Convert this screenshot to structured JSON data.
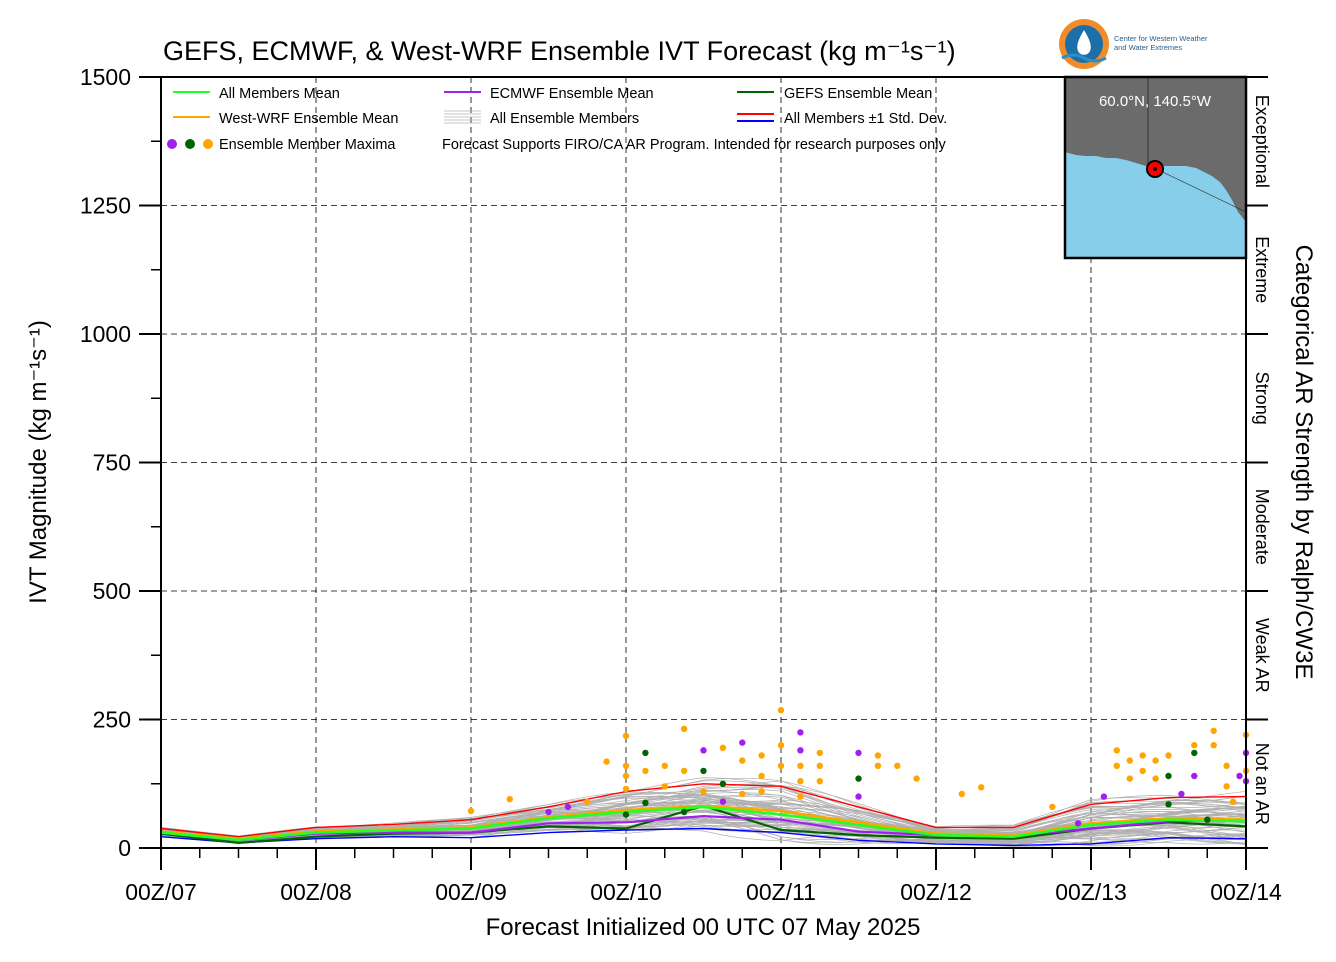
{
  "header": {
    "title": "GEFS, ECMWF, & West-WRF Ensemble IVT Forecast (kg m⁻¹s⁻¹)",
    "logo_text_line1": "Center for Western Weather",
    "logo_text_line2": "and Water Extremes"
  },
  "chart_data": {
    "type": "line",
    "title": "GEFS, ECMWF, & West-WRF Ensemble IVT Forecast (kg m⁻¹s⁻¹)",
    "xlabel": "Forecast Initialized 00 UTC 07 May 2025",
    "ylabel": "IVT Magnitude (kg m⁻¹s⁻¹)",
    "right_label": "Categorical AR Strength by Ralph/CW3E",
    "ylim": [
      0,
      1500
    ],
    "yticks": [
      "0",
      "250",
      "500",
      "750",
      "1000",
      "1250",
      "1500"
    ],
    "xticks": [
      "00Z/07",
      "00Z/08",
      "00Z/09",
      "00Z/10",
      "00Z/11",
      "00Z/12",
      "00Z/13",
      "00Z/14"
    ],
    "x_units": "forecast hour",
    "grid": true,
    "legend_placement": "top-left",
    "categories_right": [
      {
        "label": "Not an AR",
        "range": [
          0,
          250
        ]
      },
      {
        "label": "Weak AR",
        "range": [
          250,
          500
        ]
      },
      {
        "label": "Moderate",
        "range": [
          500,
          750
        ]
      },
      {
        "label": "Strong",
        "range": [
          750,
          1000
        ]
      },
      {
        "label": "Extreme",
        "range": [
          1000,
          1250
        ]
      },
      {
        "label": "Exceptional",
        "range": [
          1250,
          1500
        ]
      }
    ],
    "legend": {
      "all_members_mean": "All Members Mean",
      "ecmwf_mean": "ECMWF Ensemble Mean",
      "gefs_mean": "GEFS Ensemble Mean",
      "westwrf_mean": "West-WRF Ensemble Mean",
      "all_members": "All Ensemble Members",
      "std_dev": "All Members ±1 Std. Dev.",
      "maxima": "Ensemble Member Maxima",
      "note": "Forecast Supports FIRO/CA AR Program. Intended for research purposes only"
    },
    "colors": {
      "all_members_mean": "#22ff22",
      "ecmwf_mean": "#a020f0",
      "gefs_mean": "#006400",
      "westwrf_mean": "#ffa500",
      "members": "#b0b0b0",
      "std_upper": "#ff0000",
      "std_lower": "#0000ff"
    },
    "series": [
      {
        "name": "All Members Mean",
        "color": "#22ff22",
        "x": [
          0,
          12,
          24,
          36,
          48,
          60,
          72,
          84,
          96,
          108,
          120,
          132,
          144,
          156,
          168
        ],
        "y": [
          30,
          16,
          30,
          34,
          38,
          58,
          70,
          80,
          65,
          45,
          25,
          22,
          45,
          55,
          52
        ]
      },
      {
        "name": "ECMWF Ensemble Mean",
        "color": "#a020f0",
        "x": [
          0,
          12,
          24,
          36,
          48,
          60,
          72,
          84,
          96,
          108,
          120,
          132,
          144,
          156,
          168
        ],
        "y": [
          30,
          15,
          28,
          30,
          30,
          48,
          50,
          62,
          55,
          32,
          25,
          24,
          38,
          52,
          55
        ]
      },
      {
        "name": "GEFS Ensemble Mean",
        "color": "#006400",
        "x": [
          0,
          12,
          24,
          36,
          48,
          60,
          72,
          84,
          96,
          108,
          120,
          132,
          144,
          156,
          168
        ],
        "y": [
          28,
          10,
          22,
          28,
          30,
          42,
          38,
          82,
          35,
          25,
          20,
          18,
          38,
          50,
          42
        ]
      },
      {
        "name": "West-WRF Ensemble Mean",
        "color": "#ffa500",
        "x": [
          0,
          12,
          24,
          36,
          48,
          60,
          72,
          84,
          96,
          108,
          120,
          132,
          144,
          156,
          168
        ],
        "y": [
          32,
          18,
          32,
          36,
          40,
          60,
          74,
          82,
          72,
          50,
          28,
          24,
          48,
          58,
          55
        ]
      },
      {
        "name": "All Members +1 Std. Dev.",
        "color": "#ff0000",
        "x": [
          0,
          12,
          24,
          36,
          48,
          60,
          72,
          84,
          96,
          108,
          120,
          132,
          144,
          156,
          168
        ],
        "y": [
          38,
          22,
          40,
          46,
          55,
          80,
          110,
          125,
          120,
          80,
          40,
          40,
          85,
          98,
          100
        ]
      },
      {
        "name": "All Members -1 Std. Dev.",
        "color": "#0000ff",
        "x": [
          0,
          12,
          24,
          36,
          48,
          60,
          72,
          84,
          96,
          108,
          120,
          132,
          144,
          156,
          168
        ],
        "y": [
          22,
          10,
          18,
          22,
          20,
          30,
          35,
          38,
          30,
          15,
          8,
          5,
          8,
          20,
          18
        ]
      }
    ],
    "maxima": [
      {
        "x": 48,
        "y": 72,
        "color": "#ffa500"
      },
      {
        "x": 54,
        "y": 95,
        "color": "#ffa500"
      },
      {
        "x": 60,
        "y": 70,
        "color": "#a020f0"
      },
      {
        "x": 63,
        "y": 80,
        "color": "#a020f0"
      },
      {
        "x": 66,
        "y": 90,
        "color": "#ffa500"
      },
      {
        "x": 69,
        "y": 168,
        "color": "#ffa500"
      },
      {
        "x": 72,
        "y": 218,
        "color": "#ffa500"
      },
      {
        "x": 72,
        "y": 160,
        "color": "#ffa500"
      },
      {
        "x": 72,
        "y": 140,
        "color": "#ffa500"
      },
      {
        "x": 72,
        "y": 115,
        "color": "#ffa500"
      },
      {
        "x": 72,
        "y": 65,
        "color": "#006400"
      },
      {
        "x": 75,
        "y": 185,
        "color": "#006400"
      },
      {
        "x": 75,
        "y": 150,
        "color": "#ffa500"
      },
      {
        "x": 75,
        "y": 88,
        "color": "#006400"
      },
      {
        "x": 78,
        "y": 160,
        "color": "#ffa500"
      },
      {
        "x": 78,
        "y": 120,
        "color": "#ffa500"
      },
      {
        "x": 81,
        "y": 232,
        "color": "#ffa500"
      },
      {
        "x": 81,
        "y": 150,
        "color": "#ffa500"
      },
      {
        "x": 81,
        "y": 70,
        "color": "#006400"
      },
      {
        "x": 84,
        "y": 190,
        "color": "#a020f0"
      },
      {
        "x": 84,
        "y": 150,
        "color": "#006400"
      },
      {
        "x": 84,
        "y": 110,
        "color": "#ffa500"
      },
      {
        "x": 87,
        "y": 195,
        "color": "#ffa500"
      },
      {
        "x": 87,
        "y": 125,
        "color": "#006400"
      },
      {
        "x": 87,
        "y": 90,
        "color": "#a020f0"
      },
      {
        "x": 90,
        "y": 205,
        "color": "#a020f0"
      },
      {
        "x": 90,
        "y": 170,
        "color": "#ffa500"
      },
      {
        "x": 90,
        "y": 105,
        "color": "#ffa500"
      },
      {
        "x": 93,
        "y": 180,
        "color": "#ffa500"
      },
      {
        "x": 93,
        "y": 140,
        "color": "#ffa500"
      },
      {
        "x": 93,
        "y": 110,
        "color": "#ffa500"
      },
      {
        "x": 96,
        "y": 268,
        "color": "#ffa500"
      },
      {
        "x": 96,
        "y": 200,
        "color": "#ffa500"
      },
      {
        "x": 96,
        "y": 160,
        "color": "#ffa500"
      },
      {
        "x": 99,
        "y": 225,
        "color": "#a020f0"
      },
      {
        "x": 99,
        "y": 190,
        "color": "#a020f0"
      },
      {
        "x": 99,
        "y": 160,
        "color": "#ffa500"
      },
      {
        "x": 99,
        "y": 130,
        "color": "#ffa500"
      },
      {
        "x": 99,
        "y": 100,
        "color": "#ffa500"
      },
      {
        "x": 102,
        "y": 185,
        "color": "#ffa500"
      },
      {
        "x": 102,
        "y": 160,
        "color": "#ffa500"
      },
      {
        "x": 102,
        "y": 130,
        "color": "#ffa500"
      },
      {
        "x": 108,
        "y": 185,
        "color": "#a020f0"
      },
      {
        "x": 108,
        "y": 135,
        "color": "#006400"
      },
      {
        "x": 108,
        "y": 100,
        "color": "#a020f0"
      },
      {
        "x": 111,
        "y": 180,
        "color": "#ffa500"
      },
      {
        "x": 111,
        "y": 160,
        "color": "#ffa500"
      },
      {
        "x": 114,
        "y": 160,
        "color": "#ffa500"
      },
      {
        "x": 117,
        "y": 135,
        "color": "#ffa500"
      },
      {
        "x": 124,
        "y": 105,
        "color": "#ffa500"
      },
      {
        "x": 127,
        "y": 118,
        "color": "#ffa500"
      },
      {
        "x": 138,
        "y": 80,
        "color": "#ffa500"
      },
      {
        "x": 142,
        "y": 48,
        "color": "#a020f0"
      },
      {
        "x": 146,
        "y": 100,
        "color": "#a020f0"
      },
      {
        "x": 148,
        "y": 190,
        "color": "#ffa500"
      },
      {
        "x": 148,
        "y": 160,
        "color": "#ffa500"
      },
      {
        "x": 150,
        "y": 170,
        "color": "#ffa500"
      },
      {
        "x": 150,
        "y": 135,
        "color": "#ffa500"
      },
      {
        "x": 152,
        "y": 180,
        "color": "#ffa500"
      },
      {
        "x": 152,
        "y": 150,
        "color": "#ffa500"
      },
      {
        "x": 154,
        "y": 170,
        "color": "#ffa500"
      },
      {
        "x": 154,
        "y": 135,
        "color": "#ffa500"
      },
      {
        "x": 156,
        "y": 140,
        "color": "#006400"
      },
      {
        "x": 156,
        "y": 85,
        "color": "#006400"
      },
      {
        "x": 156,
        "y": 180,
        "color": "#ffa500"
      },
      {
        "x": 158,
        "y": 105,
        "color": "#a020f0"
      },
      {
        "x": 160,
        "y": 200,
        "color": "#ffa500"
      },
      {
        "x": 160,
        "y": 185,
        "color": "#006400"
      },
      {
        "x": 160,
        "y": 140,
        "color": "#a020f0"
      },
      {
        "x": 163,
        "y": 228,
        "color": "#ffa500"
      },
      {
        "x": 163,
        "y": 200,
        "color": "#ffa500"
      },
      {
        "x": 162,
        "y": 55,
        "color": "#006400"
      },
      {
        "x": 165,
        "y": 160,
        "color": "#ffa500"
      },
      {
        "x": 165,
        "y": 120,
        "color": "#ffa500"
      },
      {
        "x": 166,
        "y": 90,
        "color": "#ffa500"
      },
      {
        "x": 167,
        "y": 140,
        "color": "#a020f0"
      },
      {
        "x": 168,
        "y": 220,
        "color": "#ffa500"
      },
      {
        "x": 168,
        "y": 185,
        "color": "#a020f0"
      },
      {
        "x": 168,
        "y": 150,
        "color": "#ffa500"
      },
      {
        "x": 168,
        "y": 130,
        "color": "#a020f0"
      }
    ]
  },
  "inset_map": {
    "location_label": "60.0°N, 140.5°W",
    "colors": {
      "land": "#6b6b6b",
      "ocean": "#87ceeb",
      "marker": "#ff0000"
    }
  }
}
